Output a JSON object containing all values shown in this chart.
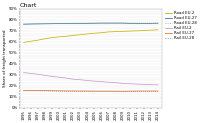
{
  "title": "Chart",
  "ylabel": "Share of freight transported",
  "years": [
    1995,
    1996,
    1997,
    1998,
    1999,
    2000,
    2001,
    2002,
    2003,
    2004,
    2005,
    2006,
    2007,
    2008,
    2009,
    2010,
    2011,
    2012,
    2013,
    2014
  ],
  "series": [
    {
      "label": "Road EU-2",
      "color": "#c8b400",
      "style": "solid",
      "data": [
        0.595,
        0.605,
        0.615,
        0.628,
        0.638,
        0.645,
        0.65,
        0.658,
        0.665,
        0.672,
        0.678,
        0.683,
        0.69,
        0.693,
        0.695,
        0.698,
        0.7,
        0.703,
        0.706,
        0.71
      ]
    },
    {
      "label": "Road EU-27",
      "color": "#4472c4",
      "style": "solid",
      "data": [
        0.76,
        0.762,
        0.763,
        0.764,
        0.765,
        0.766,
        0.767,
        0.767,
        0.768,
        0.768,
        0.769,
        0.77,
        0.77,
        0.77,
        0.77,
        0.768,
        0.768,
        0.768,
        0.768,
        0.769
      ]
    },
    {
      "label": "Road EU-28",
      "color": "#70ad47",
      "style": "dotted",
      "data": [
        0.762,
        0.764,
        0.765,
        0.766,
        0.767,
        0.768,
        0.769,
        0.769,
        0.77,
        0.77,
        0.771,
        0.772,
        0.772,
        0.772,
        0.772,
        0.77,
        0.77,
        0.77,
        0.77,
        0.771
      ]
    },
    {
      "label": "Rail EU-2",
      "color": "#cc99cc",
      "style": "solid",
      "data": [
        0.32,
        0.312,
        0.305,
        0.295,
        0.285,
        0.278,
        0.27,
        0.26,
        0.255,
        0.248,
        0.242,
        0.238,
        0.232,
        0.228,
        0.222,
        0.218,
        0.215,
        0.212,
        0.21,
        0.208
      ]
    },
    {
      "label": "Rail EU-27",
      "color": "#ed7d31",
      "style": "solid",
      "data": [
        0.158,
        0.158,
        0.157,
        0.156,
        0.155,
        0.154,
        0.153,
        0.153,
        0.152,
        0.152,
        0.151,
        0.151,
        0.151,
        0.151,
        0.15,
        0.151,
        0.152,
        0.152,
        0.152,
        0.152
      ]
    },
    {
      "label": "Rail EU-28",
      "color": "#808080",
      "style": "dotted",
      "data": [
        0.155,
        0.155,
        0.154,
        0.153,
        0.152,
        0.151,
        0.15,
        0.15,
        0.149,
        0.149,
        0.148,
        0.148,
        0.148,
        0.148,
        0.147,
        0.148,
        0.149,
        0.149,
        0.149,
        0.149
      ]
    }
  ],
  "ylim": [
    0.0,
    0.9
  ],
  "ytick_step": 0.025,
  "ytick_label_every": 4,
  "background_color": "#ffffff",
  "title_fontsize": 4.5,
  "label_fontsize": 3.0,
  "tick_fontsize": 2.8,
  "legend_fontsize": 2.8
}
